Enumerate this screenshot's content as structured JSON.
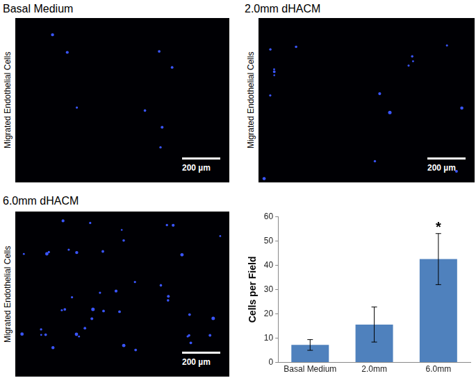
{
  "panels": [
    {
      "title": "Basal Medium",
      "side_label": "Migrated Endothelial Cells",
      "scale_bar": "200 µm"
    },
    {
      "title": "2.0mm dHACM",
      "side_label": "Migrated Endothelial Cells",
      "scale_bar": "200 µm"
    },
    {
      "title": "6.0mm dHACM",
      "side_label": "Migrated Endothelial Cells",
      "scale_bar": "200 µm"
    }
  ],
  "chart_data": {
    "type": "bar",
    "categories": [
      "Basal Medium",
      "2.0mm",
      "6.0mm"
    ],
    "values": [
      7.2,
      15.6,
      42.5
    ],
    "errors": [
      2.2,
      7.2,
      10.5
    ],
    "color": "#4f81bd",
    "y_label": "Cells per Field",
    "ylim": [
      0,
      60
    ],
    "yticks": [
      0,
      10,
      20,
      30,
      40,
      50,
      60
    ],
    "grid": false,
    "annotations": [
      {
        "category": "6.0mm",
        "text": "*"
      }
    ]
  }
}
